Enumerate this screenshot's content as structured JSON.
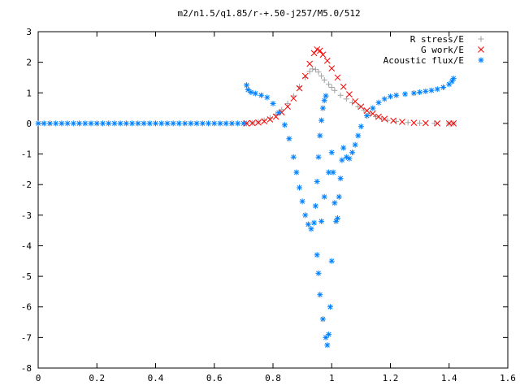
{
  "chart_data": {
    "type": "scatter",
    "title": "m2/n1.5/q1.85/r-+.50-j257/M5.0/512",
    "xlabel": "",
    "ylabel": "",
    "xlim": [
      0,
      1.6
    ],
    "ylim": [
      -8,
      3
    ],
    "xticks": [
      "0",
      "0.2",
      "0.4",
      "0.6",
      "0.8",
      "1",
      "1.2",
      "1.4",
      "1.6"
    ],
    "yticks": [
      "3",
      "2",
      "1",
      "0",
      "-1",
      "-2",
      "-3",
      "-4",
      "-5",
      "-6",
      "-7",
      "-8"
    ],
    "xtick_values": [
      0,
      0.2,
      0.4,
      0.6,
      0.8,
      1.0,
      1.2,
      1.4,
      1.6
    ],
    "ytick_values": [
      3,
      2,
      1,
      0,
      -1,
      -2,
      -3,
      -4,
      -5,
      -6,
      -7,
      -8
    ],
    "grid": false,
    "legend_position": "top-right",
    "series": [
      {
        "name": "R stress/E",
        "marker": "+",
        "color": "#a0a0a0",
        "points": [
          [
            0.71,
            0.0
          ],
          [
            0.73,
            0.02
          ],
          [
            0.75,
            0.05
          ],
          [
            0.77,
            0.1
          ],
          [
            0.79,
            0.18
          ],
          [
            0.81,
            0.3
          ],
          [
            0.83,
            0.45
          ],
          [
            0.85,
            0.65
          ],
          [
            0.87,
            0.9
          ],
          [
            0.89,
            1.2
          ],
          [
            0.91,
            1.5
          ],
          [
            0.925,
            1.7
          ],
          [
            0.935,
            1.78
          ],
          [
            0.945,
            1.76
          ],
          [
            0.955,
            1.68
          ],
          [
            0.965,
            1.55
          ],
          [
            0.975,
            1.42
          ],
          [
            0.99,
            1.28
          ],
          [
            1.0,
            1.18
          ],
          [
            1.01,
            1.08
          ],
          [
            1.03,
            0.92
          ],
          [
            1.05,
            0.8
          ],
          [
            1.07,
            0.68
          ],
          [
            1.09,
            0.55
          ],
          [
            1.11,
            0.43
          ],
          [
            1.13,
            0.32
          ],
          [
            1.15,
            0.22
          ],
          [
            1.17,
            0.15
          ],
          [
            1.19,
            0.1
          ],
          [
            1.22,
            0.06
          ],
          [
            1.26,
            0.03
          ],
          [
            1.3,
            0.01
          ],
          [
            1.35,
            0.0
          ],
          [
            1.4,
            0.0
          ],
          [
            1.415,
            0.0
          ]
        ]
      },
      {
        "name": "G work/E",
        "marker": "x",
        "color": "#ff0000",
        "points": [
          [
            0.71,
            0.0
          ],
          [
            0.73,
            0.01
          ],
          [
            0.75,
            0.03
          ],
          [
            0.77,
            0.07
          ],
          [
            0.79,
            0.13
          ],
          [
            0.81,
            0.22
          ],
          [
            0.83,
            0.36
          ],
          [
            0.85,
            0.55
          ],
          [
            0.87,
            0.82
          ],
          [
            0.89,
            1.15
          ],
          [
            0.91,
            1.55
          ],
          [
            0.925,
            1.95
          ],
          [
            0.94,
            2.3
          ],
          [
            0.95,
            2.42
          ],
          [
            0.96,
            2.38
          ],
          [
            0.97,
            2.25
          ],
          [
            0.985,
            2.05
          ],
          [
            1.0,
            1.8
          ],
          [
            1.02,
            1.5
          ],
          [
            1.04,
            1.2
          ],
          [
            1.06,
            0.95
          ],
          [
            1.08,
            0.72
          ],
          [
            1.1,
            0.55
          ],
          [
            1.12,
            0.42
          ],
          [
            1.14,
            0.32
          ],
          [
            1.16,
            0.22
          ],
          [
            1.18,
            0.15
          ],
          [
            1.21,
            0.09
          ],
          [
            1.24,
            0.05
          ],
          [
            1.28,
            0.02
          ],
          [
            1.32,
            0.01
          ],
          [
            1.36,
            0.0
          ],
          [
            1.4,
            0.0
          ],
          [
            1.415,
            0.0
          ]
        ]
      },
      {
        "name": "Acoustic flux/E",
        "marker": "*",
        "color": "#0080ff",
        "points": [
          [
            0.0,
            0.0
          ],
          [
            0.02,
            0.0
          ],
          [
            0.04,
            0.0
          ],
          [
            0.06,
            0.0
          ],
          [
            0.08,
            0.0
          ],
          [
            0.1,
            0.0
          ],
          [
            0.12,
            0.0
          ],
          [
            0.14,
            0.0
          ],
          [
            0.16,
            0.0
          ],
          [
            0.18,
            0.0
          ],
          [
            0.2,
            0.0
          ],
          [
            0.22,
            0.0
          ],
          [
            0.24,
            0.0
          ],
          [
            0.26,
            0.0
          ],
          [
            0.28,
            0.0
          ],
          [
            0.3,
            0.0
          ],
          [
            0.32,
            0.0
          ],
          [
            0.34,
            0.0
          ],
          [
            0.36,
            0.0
          ],
          [
            0.38,
            0.0
          ],
          [
            0.4,
            0.0
          ],
          [
            0.42,
            0.0
          ],
          [
            0.44,
            0.0
          ],
          [
            0.46,
            0.0
          ],
          [
            0.48,
            0.0
          ],
          [
            0.5,
            0.0
          ],
          [
            0.52,
            0.0
          ],
          [
            0.54,
            0.0
          ],
          [
            0.56,
            0.0
          ],
          [
            0.58,
            0.0
          ],
          [
            0.6,
            0.0
          ],
          [
            0.62,
            0.0
          ],
          [
            0.64,
            0.0
          ],
          [
            0.66,
            0.0
          ],
          [
            0.68,
            0.0
          ],
          [
            0.7,
            0.0
          ],
          [
            0.71,
            1.25
          ],
          [
            0.715,
            1.1
          ],
          [
            0.725,
            1.02
          ],
          [
            0.74,
            0.98
          ],
          [
            0.76,
            0.92
          ],
          [
            0.78,
            0.85
          ],
          [
            0.8,
            0.65
          ],
          [
            0.82,
            0.35
          ],
          [
            0.84,
            -0.05
          ],
          [
            0.855,
            -0.5
          ],
          [
            0.87,
            -1.1
          ],
          [
            0.88,
            -1.6
          ],
          [
            0.89,
            -2.1
          ],
          [
            0.9,
            -2.55
          ],
          [
            0.91,
            -3.0
          ],
          [
            0.92,
            -3.3
          ],
          [
            0.93,
            -3.45
          ],
          [
            0.94,
            -3.25
          ],
          [
            0.945,
            -2.7
          ],
          [
            0.95,
            -1.9
          ],
          [
            0.955,
            -1.1
          ],
          [
            0.96,
            -0.4
          ],
          [
            0.965,
            0.1
          ],
          [
            0.97,
            0.5
          ],
          [
            0.975,
            0.75
          ],
          [
            0.98,
            0.9
          ],
          [
            0.95,
            -4.3
          ],
          [
            0.955,
            -4.9
          ],
          [
            0.96,
            -5.6
          ],
          [
            0.97,
            -6.4
          ],
          [
            0.98,
            -7.0
          ],
          [
            0.985,
            -7.25
          ],
          [
            0.99,
            -6.9
          ],
          [
            0.995,
            -6.0
          ],
          [
            1.0,
            -4.5
          ],
          [
            0.965,
            -3.2
          ],
          [
            0.975,
            -2.4
          ],
          [
            0.99,
            -1.6
          ],
          [
            1.0,
            -0.95
          ],
          [
            1.005,
            -1.6
          ],
          [
            1.01,
            -2.6
          ],
          [
            1.015,
            -3.2
          ],
          [
            1.02,
            -3.1
          ],
          [
            1.025,
            -2.4
          ],
          [
            1.03,
            -1.8
          ],
          [
            1.035,
            -1.2
          ],
          [
            1.04,
            -0.8
          ],
          [
            1.05,
            -1.1
          ],
          [
            1.06,
            -1.15
          ],
          [
            1.07,
            -0.95
          ],
          [
            1.08,
            -0.7
          ],
          [
            1.09,
            -0.4
          ],
          [
            1.1,
            -0.1
          ],
          [
            1.12,
            0.25
          ],
          [
            1.14,
            0.5
          ],
          [
            1.16,
            0.68
          ],
          [
            1.18,
            0.8
          ],
          [
            1.2,
            0.88
          ],
          [
            1.22,
            0.92
          ],
          [
            1.25,
            0.96
          ],
          [
            1.28,
            0.99
          ],
          [
            1.3,
            1.02
          ],
          [
            1.32,
            1.05
          ],
          [
            1.34,
            1.08
          ],
          [
            1.36,
            1.12
          ],
          [
            1.38,
            1.18
          ],
          [
            1.4,
            1.28
          ],
          [
            1.41,
            1.38
          ],
          [
            1.415,
            1.47
          ]
        ]
      }
    ]
  }
}
